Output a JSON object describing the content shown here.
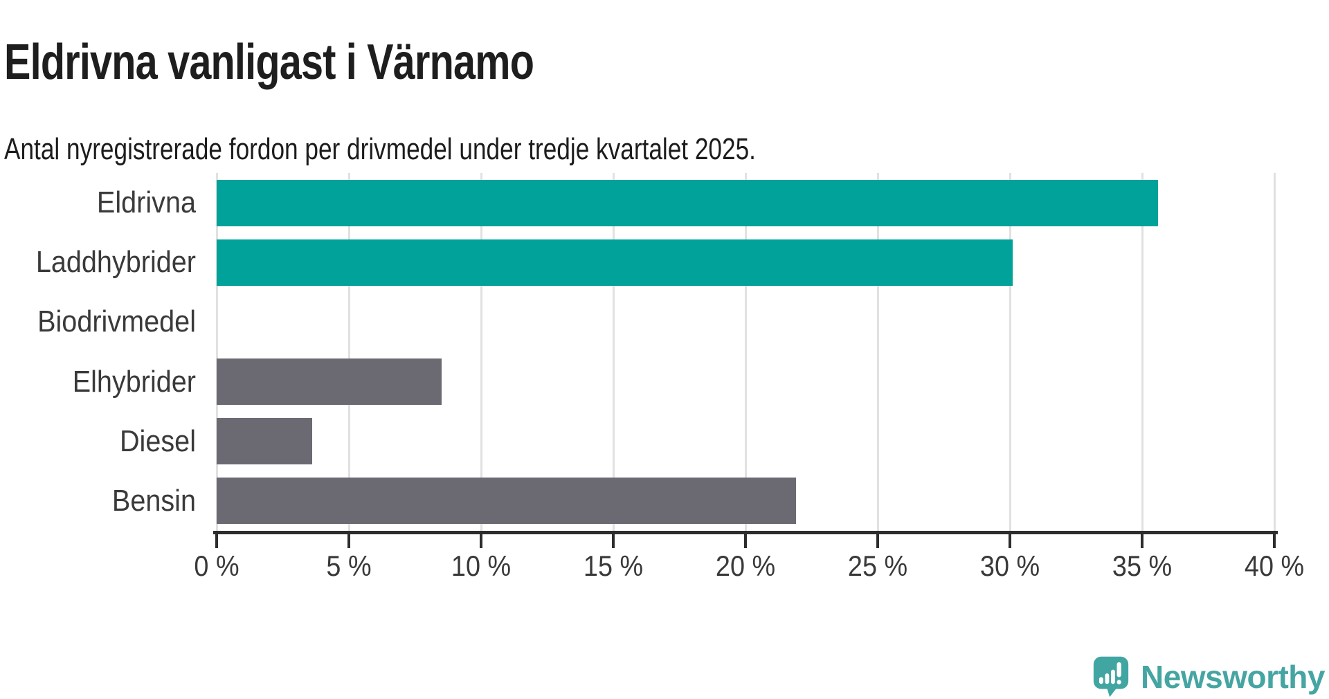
{
  "header": {
    "title": "Eldrivna vanligast i Värnamo",
    "subtitle": "Antal nyregistrerade fordon per drivmedel under tredje kvartalet 2025."
  },
  "chart_data": {
    "type": "bar",
    "orientation": "horizontal",
    "title": "Eldrivna vanligast i Värnamo",
    "subtitle": "Antal nyregistrerade fordon per drivmedel under tredje kvartalet 2025.",
    "categories": [
      "Eldrivna",
      "Laddhybrider",
      "Biodrivmedel",
      "Elhybrider",
      "Diesel",
      "Bensin"
    ],
    "values": [
      35.6,
      30.1,
      0,
      8.5,
      3.6,
      21.9
    ],
    "unit": "%",
    "colors": [
      "#00a29a",
      "#00a29a",
      "#6b6a72",
      "#6b6a72",
      "#6b6a72",
      "#6b6a72"
    ],
    "highlight_color": "#00a29a",
    "base_color": "#6b6a72",
    "xlim": [
      0,
      40
    ],
    "x_ticks": [
      0,
      5,
      10,
      15,
      20,
      25,
      30,
      35,
      40
    ],
    "x_tick_labels": [
      "0 %",
      "5 %",
      "10 %",
      "15 %",
      "20 %",
      "25 %",
      "30 %",
      "35 %",
      "40 %"
    ],
    "grid": true,
    "gridline_color": "#e1e1e1",
    "axis_color": "#2d2d2f",
    "legend": "none"
  },
  "branding": {
    "name": "Newsworthy",
    "icon": "newsworthy-speech-bubble-chart-icon",
    "text_color": "#45a5a2",
    "icon_color": "#41a6a2"
  }
}
